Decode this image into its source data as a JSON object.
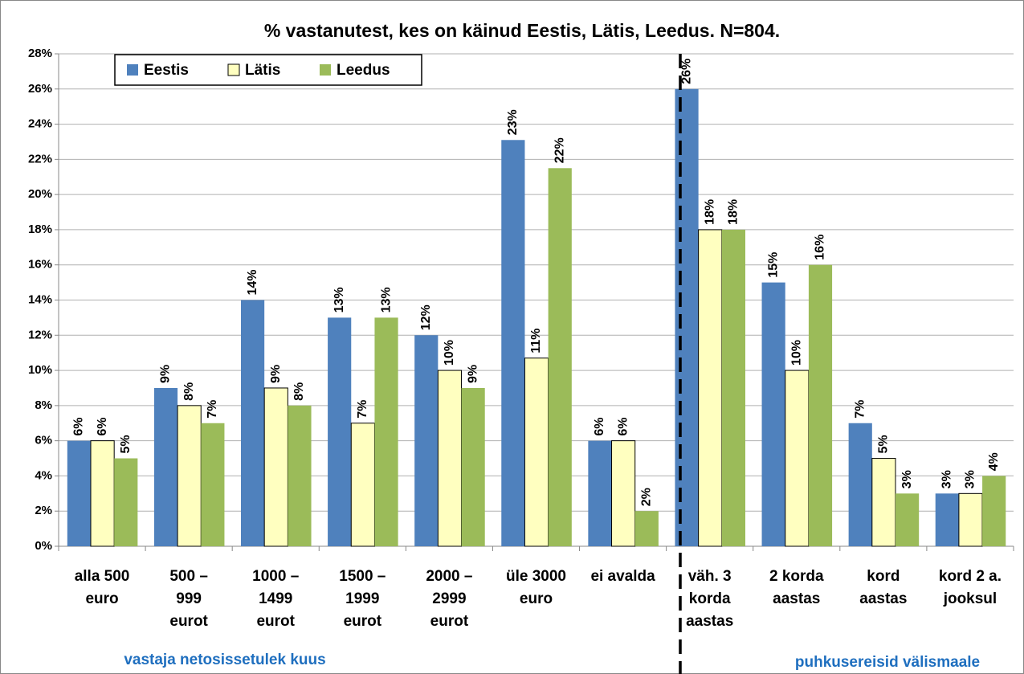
{
  "chart_data": {
    "type": "bar",
    "title": "% vastanutest, kes on käinud Eestis, Lätis, Leedus. N=804.",
    "categories": [
      [
        "alla 500",
        "euro"
      ],
      [
        "500 –",
        "999",
        "eurot"
      ],
      [
        "1000 –",
        "1499",
        "eurot"
      ],
      [
        "1500 –",
        "1999",
        "eurot"
      ],
      [
        "2000 –",
        "2999",
        "eurot"
      ],
      [
        "üle 3000",
        "euro"
      ],
      [
        "ei avalda"
      ],
      [
        "väh. 3",
        "korda",
        "aastas"
      ],
      [
        "2 korda",
        "aastas"
      ],
      [
        "kord",
        "aastas"
      ],
      [
        "kord 2 a.",
        "jooksul"
      ]
    ],
    "series": [
      {
        "name": "Eestis",
        "color": "#4f81bd",
        "values": [
          6,
          9,
          14,
          13,
          12,
          23.1,
          6,
          26,
          15,
          7,
          3
        ],
        "value_labels": [
          "6%",
          "9%",
          "14%",
          "13%",
          "12%",
          "23%",
          "6%",
          "26%",
          "15%",
          "7%",
          "3%"
        ]
      },
      {
        "name": "Lätis",
        "color": "#ffffc0",
        "values": [
          6,
          8,
          9,
          7,
          10,
          10.7,
          6,
          18,
          10,
          5,
          3
        ],
        "value_labels": [
          "6%",
          "8%",
          "9%",
          "7%",
          "10%",
          "11%",
          "6%",
          "18%",
          "10%",
          "5%",
          "3%"
        ]
      },
      {
        "name": "Leedus",
        "color": "#9bbb59",
        "values": [
          5,
          7,
          8,
          13,
          9,
          21.5,
          2,
          18,
          16,
          3,
          4
        ],
        "value_labels": [
          "5%",
          "7%",
          "8%",
          "13%",
          "9%",
          "22%",
          "2%",
          "18%",
          "16%",
          "3%",
          "4%"
        ]
      }
    ],
    "ylim": [
      0,
      28
    ],
    "yticks": [
      {
        "value": 0,
        "label": "0%"
      },
      {
        "value": 2,
        "label": "2%"
      },
      {
        "value": 4,
        "label": "4%"
      },
      {
        "value": 6,
        "label": "6%"
      },
      {
        "value": 8,
        "label": "8%"
      },
      {
        "value": 10,
        "label": "10%"
      },
      {
        "value": 12,
        "label": "12%"
      },
      {
        "value": 14,
        "label": "14%"
      },
      {
        "value": 16,
        "label": "16%"
      },
      {
        "value": 18,
        "label": "18%"
      },
      {
        "value": 20,
        "label": "20%"
      },
      {
        "value": 22,
        "label": "22%"
      },
      {
        "value": 24,
        "label": "24%"
      },
      {
        "value": 26,
        "label": "26%"
      },
      {
        "value": 28,
        "label": "28%"
      }
    ],
    "grid": true,
    "legend": "top-left",
    "annotations": [
      "vastaja netosissetulek kuus",
      "puhkusereisid välismaale"
    ]
  }
}
